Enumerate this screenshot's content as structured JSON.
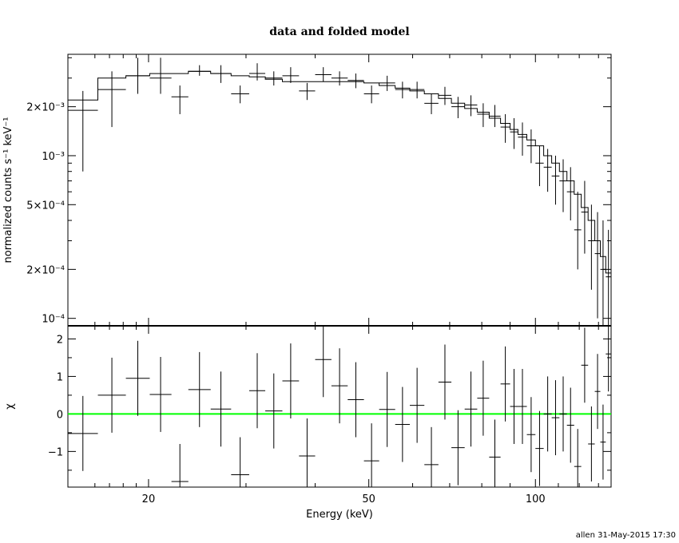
{
  "chart_data": {
    "type": "scatter",
    "title": "data and folded model",
    "xlabel": "Energy (keV)",
    "x_scale": "log",
    "xlim": [
      14.3,
      137
    ],
    "xticks": [
      {
        "v": 20,
        "label": "20"
      },
      {
        "v": 50,
        "label": "50"
      },
      {
        "v": 100,
        "label": "100"
      }
    ],
    "top_panel": {
      "ylabel": "normalized counts s⁻¹ keV⁻¹",
      "y_scale": "log",
      "ylim": [
        9e-05,
        0.0042
      ],
      "yticks": [
        {
          "v": 0.002,
          "label": "2×10⁻³"
        },
        {
          "v": 0.001,
          "label": "10⁻³"
        },
        {
          "v": 0.0005,
          "label": "5×10⁻⁴"
        },
        {
          "v": 0.0002,
          "label": "2×10⁻⁴"
        },
        {
          "v": 0.0001,
          "label": "10⁻⁴"
        }
      ]
    },
    "bottom_panel": {
      "ylabel": "χ",
      "y_scale": "linear",
      "ylim": [
        -1.95,
        2.35
      ],
      "yticks": [
        {
          "v": 2,
          "label": "2"
        },
        {
          "v": 1,
          "label": "1"
        },
        {
          "v": 0,
          "label": "0"
        },
        {
          "v": -1,
          "label": "−1"
        }
      ],
      "zero_line_color": "#00ff00"
    },
    "bins": [
      [
        14.3,
        16.2,
        0.0019,
        0.0008,
        0.0025,
        0.0022,
        -0.52,
        1.0
      ],
      [
        16.2,
        18.2,
        0.00255,
        0.0015,
        0.0033,
        0.003,
        0.5,
        1.0
      ],
      [
        18.2,
        20.1,
        0.0031,
        0.0024,
        0.004,
        0.0031,
        0.95,
        1.0
      ],
      [
        20.1,
        22.0,
        0.003,
        0.0024,
        0.004,
        0.0032,
        0.52,
        1.0
      ],
      [
        22.0,
        23.6,
        0.0023,
        0.0018,
        0.0027,
        0.0032,
        -1.8,
        1.0
      ],
      [
        23.6,
        25.9,
        0.0033,
        0.0031,
        0.0036,
        0.0033,
        0.65,
        1.0
      ],
      [
        25.9,
        28.2,
        0.0032,
        0.0028,
        0.0036,
        0.0032,
        0.13,
        1.0
      ],
      [
        28.2,
        30.4,
        0.0024,
        0.0021,
        0.0027,
        0.0031,
        -1.62,
        1.0
      ],
      [
        30.4,
        32.5,
        0.0032,
        0.0029,
        0.0037,
        0.00305,
        0.62,
        1.0
      ],
      [
        32.5,
        34.9,
        0.003,
        0.0027,
        0.0033,
        0.00295,
        0.08,
        1.0
      ],
      [
        34.9,
        37.4,
        0.0031,
        0.0028,
        0.0035,
        0.00285,
        0.88,
        1.0
      ],
      [
        37.4,
        40.0,
        0.0025,
        0.0022,
        0.0028,
        0.00285,
        -1.12,
        1.0
      ],
      [
        40.0,
        42.8,
        0.00315,
        0.00285,
        0.0035,
        0.00285,
        1.45,
        1.0
      ],
      [
        42.8,
        45.8,
        0.003,
        0.0027,
        0.0033,
        0.00285,
        0.75,
        1.0
      ],
      [
        45.8,
        49.0,
        0.0029,
        0.0026,
        0.0032,
        0.00285,
        0.38,
        1.0
      ],
      [
        49.0,
        52.2,
        0.0024,
        0.0021,
        0.0027,
        0.0028,
        -1.25,
        1.0
      ],
      [
        52.2,
        55.8,
        0.0028,
        0.0025,
        0.0031,
        0.0027,
        0.12,
        1.0
      ],
      [
        55.8,
        59.3,
        0.00255,
        0.00225,
        0.00285,
        0.0026,
        -0.28,
        1.0
      ],
      [
        59.3,
        63.0,
        0.00255,
        0.00225,
        0.00285,
        0.0025,
        0.23,
        1.0
      ],
      [
        63.0,
        66.8,
        0.0021,
        0.0018,
        0.0024,
        0.0024,
        -1.35,
        1.0
      ],
      [
        66.8,
        70.5,
        0.00235,
        0.00205,
        0.00265,
        0.00225,
        0.85,
        1.0
      ],
      [
        70.5,
        74.5,
        0.002,
        0.0017,
        0.0023,
        0.0021,
        -0.9,
        1.0
      ],
      [
        74.5,
        78.5,
        0.00205,
        0.00175,
        0.00235,
        0.00195,
        0.13,
        1.0
      ],
      [
        78.5,
        82.5,
        0.0018,
        0.0015,
        0.0021,
        0.00185,
        0.42,
        1.0
      ],
      [
        82.5,
        86.5,
        0.00175,
        0.0015,
        0.00205,
        0.0017,
        -1.15,
        1.0
      ],
      [
        86.5,
        90.0,
        0.0015,
        0.0012,
        0.0018,
        0.00158,
        0.8,
        1.0
      ],
      [
        90.0,
        93.0,
        0.0014,
        0.0011,
        0.0017,
        0.00145,
        0.2,
        1.0
      ],
      [
        93.0,
        96.5,
        0.0013,
        0.001,
        0.0016,
        0.00135,
        0.2,
        1.0
      ],
      [
        96.5,
        100.0,
        0.00115,
        0.0009,
        0.00145,
        0.00125,
        -0.55,
        1.0
      ],
      [
        100.0,
        103.5,
        0.0009,
        0.00065,
        0.00115,
        0.00115,
        -0.92,
        1.0
      ],
      [
        103.5,
        107.0,
        0.00085,
        0.0006,
        0.0011,
        0.001,
        0.0,
        1.0
      ],
      [
        107.0,
        110.5,
        0.00075,
        0.0005,
        0.001,
        0.0009,
        -0.1,
        1.0
      ],
      [
        110.5,
        114.0,
        0.0007,
        0.00045,
        0.00095,
        0.0008,
        0.0,
        1.0
      ],
      [
        114.0,
        117.5,
        0.0006,
        0.0004,
        0.00085,
        0.0007,
        -0.3,
        1.0
      ],
      [
        117.5,
        121.0,
        0.00035,
        0.0002,
        0.0006,
        0.00058,
        -1.4,
        1.0
      ],
      [
        121.0,
        124.5,
        0.00045,
        0.00025,
        0.0007,
        0.00048,
        1.3,
        1.0
      ],
      [
        124.5,
        128.0,
        0.0003,
        0.00015,
        0.0005,
        0.0004,
        -0.8,
        1.0
      ],
      [
        128.0,
        131.0,
        0.00025,
        0.0001,
        0.00045,
        0.0003,
        0.6,
        1.0
      ],
      [
        131.0,
        134.0,
        0.0002,
        8e-05,
        0.0004,
        0.00024,
        -0.75,
        1.0
      ],
      [
        134.0,
        137.0,
        0.00018,
        8e-05,
        0.00035,
        0.00019,
        1.6,
        1.0
      ]
    ],
    "bins_columns": [
      "e_lo",
      "e_hi",
      "data",
      "data_lo",
      "data_hi",
      "model",
      "chi",
      "chi_err"
    ]
  },
  "footer": {
    "stamp": "allen 31-May-2015 17:30"
  }
}
